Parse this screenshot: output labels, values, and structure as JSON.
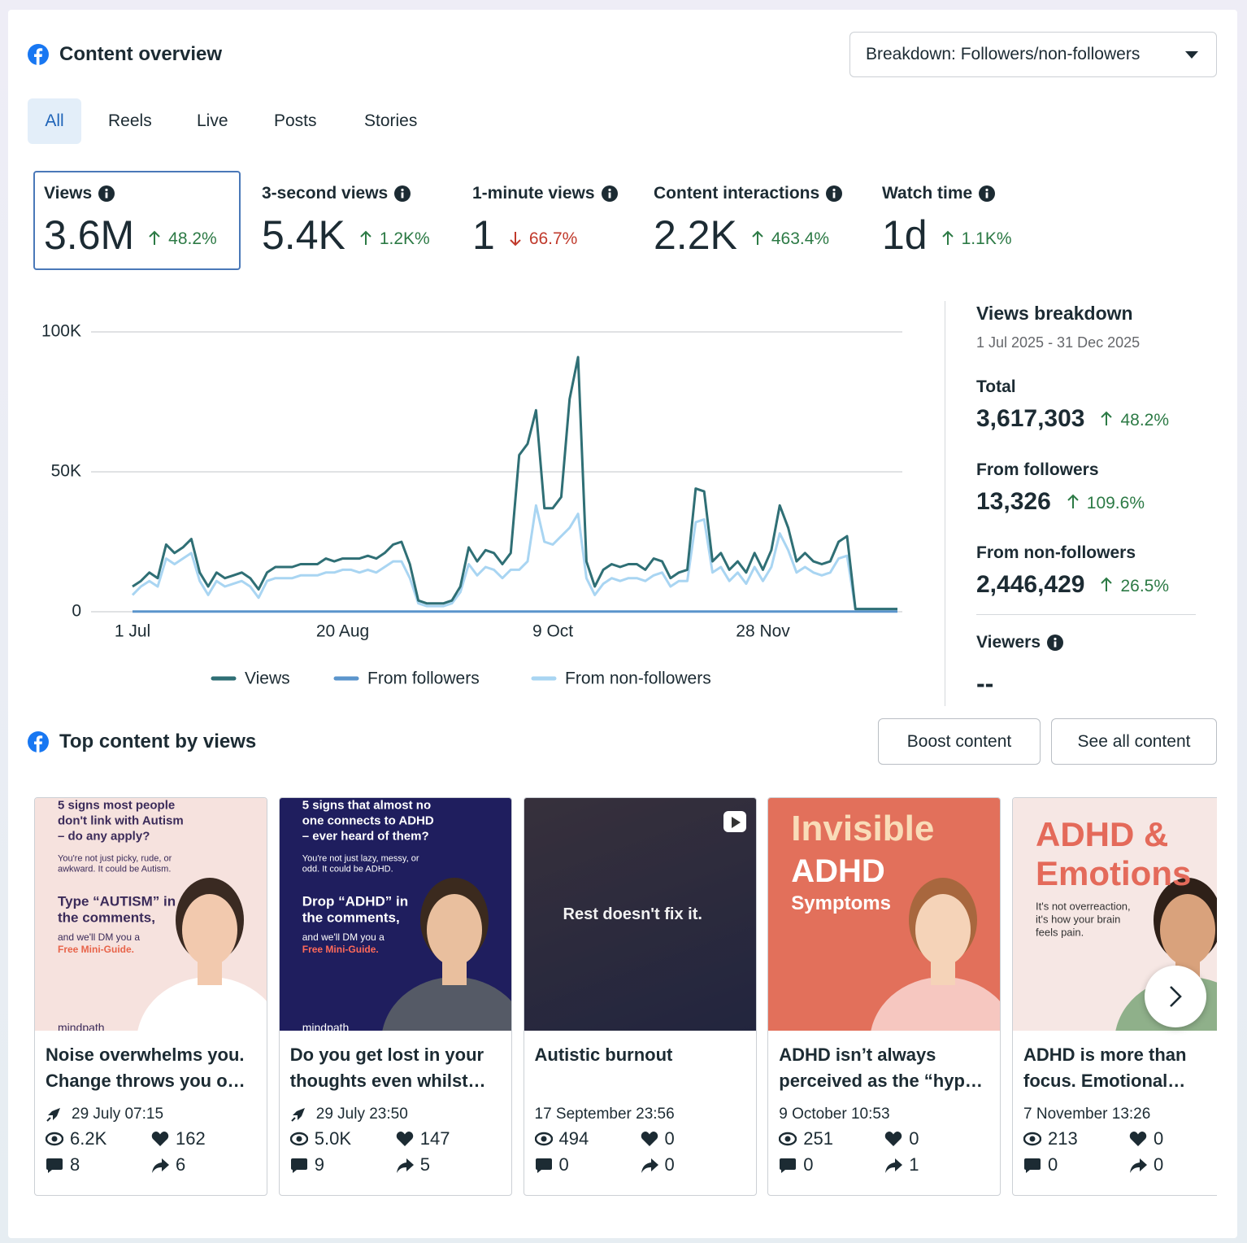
{
  "header": {
    "title": "Content overview",
    "breakdown": "Breakdown: Followers/non-followers"
  },
  "tabs": [
    "All",
    "Reels",
    "Live",
    "Posts",
    "Stories"
  ],
  "metrics": [
    {
      "label": "Views",
      "value": "3.6M",
      "change": "48.2%",
      "direction": "up"
    },
    {
      "label": "3-second views",
      "value": "5.4K",
      "change": "1.2K%",
      "direction": "up"
    },
    {
      "label": "1-minute views",
      "value": "1",
      "change": "66.7%",
      "direction": "down"
    },
    {
      "label": "Content interactions",
      "value": "2.2K",
      "change": "463.4%",
      "direction": "up"
    },
    {
      "label": "Watch time",
      "value": "1d",
      "change": "1.1K%",
      "direction": "up"
    }
  ],
  "chart_data": {
    "type": "line",
    "categories": [
      "1 Jul",
      null,
      null,
      null,
      null,
      null,
      null,
      null,
      null,
      null,
      null,
      null,
      null,
      null,
      null,
      null,
      null,
      null,
      null,
      null,
      null,
      null,
      null,
      null,
      null,
      "20 Aug",
      null,
      null,
      null,
      null,
      null,
      null,
      null,
      null,
      null,
      null,
      null,
      null,
      null,
      null,
      null,
      null,
      null,
      null,
      null,
      null,
      null,
      null,
      null,
      null,
      "9 Oct",
      null,
      null,
      null,
      null,
      null,
      null,
      null,
      null,
      null,
      null,
      null,
      null,
      null,
      null,
      null,
      null,
      null,
      null,
      null,
      null,
      null,
      null,
      null,
      null,
      "28 Nov",
      null,
      null,
      null,
      null,
      null,
      null,
      null,
      null,
      null,
      null,
      null,
      null,
      null,
      null,
      null,
      null
    ],
    "series": [
      {
        "name": "Views",
        "color": "#2f6f75",
        "values": [
          9000,
          11000,
          14000,
          12000,
          24000,
          21000,
          23000,
          26000,
          14000,
          9000,
          14000,
          12000,
          13000,
          14000,
          12000,
          8000,
          14000,
          16000,
          16000,
          16000,
          17000,
          17000,
          17000,
          19000,
          18000,
          19000,
          19000,
          19000,
          20000,
          19000,
          21000,
          24000,
          25000,
          17000,
          4000,
          3000,
          3000,
          3000,
          4000,
          9000,
          23000,
          18000,
          22000,
          21000,
          17000,
          21000,
          56000,
          60000,
          72000,
          37000,
          37000,
          41000,
          76000,
          91000,
          18000,
          9000,
          15000,
          17000,
          16000,
          17000,
          17000,
          15000,
          19000,
          18000,
          12000,
          14000,
          15000,
          44000,
          43000,
          18000,
          21000,
          15000,
          18000,
          14000,
          21000,
          15000,
          22000,
          38000,
          30000,
          18000,
          21000,
          18000,
          17000,
          18000,
          25000,
          27000,
          1000,
          1000,
          1000,
          1000,
          1000,
          1000
        ]
      },
      {
        "name": "From followers",
        "color": "#5b95cc",
        "values": [
          70,
          70,
          70,
          70,
          70,
          70,
          70,
          70,
          70,
          70,
          70,
          70,
          70,
          70,
          70,
          70,
          70,
          70,
          70,
          70,
          70,
          70,
          70,
          70,
          70,
          70,
          70,
          70,
          70,
          70,
          70,
          70,
          70,
          70,
          70,
          70,
          70,
          70,
          70,
          70,
          70,
          70,
          70,
          70,
          70,
          70,
          70,
          70,
          70,
          70,
          70,
          70,
          70,
          70,
          70,
          70,
          70,
          70,
          70,
          70,
          70,
          70,
          70,
          70,
          70,
          70,
          70,
          70,
          70,
          70,
          70,
          70,
          70,
          70,
          70,
          70,
          70,
          70,
          70,
          70,
          70,
          70,
          70,
          70,
          70,
          70,
          70,
          70,
          70,
          70,
          70,
          70
        ]
      },
      {
        "name": "From non-followers",
        "color": "#a9d5f2",
        "values": [
          6000,
          9000,
          11000,
          9000,
          19000,
          17000,
          19000,
          21000,
          11000,
          6000,
          11000,
          9000,
          10000,
          11000,
          9000,
          5000,
          11000,
          12000,
          12000,
          12000,
          13000,
          13000,
          13000,
          14000,
          14000,
          15000,
          15000,
          14000,
          15000,
          14000,
          16000,
          18000,
          18000,
          12000,
          3000,
          2000,
          2000,
          2000,
          3000,
          7000,
          17000,
          13000,
          16000,
          15000,
          12000,
          15000,
          15000,
          18000,
          38000,
          25000,
          24000,
          27000,
          30000,
          35000,
          12000,
          6000,
          10000,
          12000,
          11000,
          12000,
          12000,
          11000,
          13000,
          14000,
          9000,
          11000,
          11000,
          32000,
          33000,
          14000,
          16000,
          11000,
          14000,
          10000,
          16000,
          11000,
          16000,
          28000,
          22000,
          14000,
          16000,
          14000,
          13000,
          14000,
          19000,
          20000,
          1000,
          1000,
          1000,
          1000,
          1000,
          1000
        ]
      }
    ],
    "ylim": [
      0,
      100000
    ],
    "yticks": [
      0,
      {
        "value": 50000,
        "label": "50K"
      },
      {
        "value": 100000,
        "label": "100K"
      }
    ],
    "grid": true
  },
  "breakdown": {
    "title": "Views breakdown",
    "date_range": "1 Jul 2025 - 31 Dec 2025",
    "items": [
      {
        "label": "Total",
        "value": "3,617,303",
        "change": "48.2%"
      },
      {
        "label": "From followers",
        "value": "13,326",
        "change": "109.6%"
      },
      {
        "label": "From non-followers",
        "value": "2,446,429",
        "change": "26.5%"
      }
    ],
    "viewers_label": "Viewers",
    "viewers_value": "--"
  },
  "top_content": {
    "title": "Top content by views",
    "buttons": [
      "Boost content",
      "See all content"
    ],
    "posts": [
      {
        "thumb_text": [
          "5 signs most people",
          "don't link with Autism",
          "– do any apply?",
          "You're not just picky, rude, or",
          "awkward. It could be Autism.",
          "Type “AUTISM” in",
          "the comments,",
          "and we'll DM you a",
          "Free Mini-Guide.",
          "mindpath"
        ],
        "caption": "Noise overwhelms you. Change throws you o…",
        "date": "29 July 07:15",
        "views": "6.2K",
        "likes": "162",
        "comments": "8",
        "shares": "6"
      },
      {
        "thumb_text": [
          "5 signs that almost no",
          "one connects to ADHD",
          "– ever heard of them?",
          "You're not just lazy, messy, or",
          "odd. It could be ADHD.",
          "Drop “ADHD” in",
          "the comments,",
          "and we'll DM you a",
          "Free Mini-Guide.",
          "mindpath"
        ],
        "caption": "Do you get lost in your thoughts even whilst…",
        "date": "29 July 23:50",
        "views": "5.0K",
        "likes": "147",
        "comments": "9",
        "shares": "5"
      },
      {
        "thumb_text": [
          "Rest doesn't fix it."
        ],
        "caption": "Autistic burnout",
        "date": "17 September 23:56",
        "views": "494",
        "likes": "0",
        "comments": "0",
        "shares": "0"
      },
      {
        "thumb_text": [
          "Invisible",
          "ADHD",
          "Symptoms"
        ],
        "caption": "ADHD isn’t always perceived as the “hyp…",
        "date": "9 October 10:53",
        "views": "251",
        "likes": "0",
        "comments": "0",
        "shares": "1"
      },
      {
        "thumb_text": [
          "ADHD &",
          "Emotions",
          "It's not overreaction,",
          "it's how your brain",
          "feels pain."
        ],
        "caption": "ADHD is more than focus. Emotional…",
        "date": "7 November 13:26",
        "views": "213",
        "likes": "0",
        "comments": "0",
        "shares": "0"
      }
    ]
  }
}
